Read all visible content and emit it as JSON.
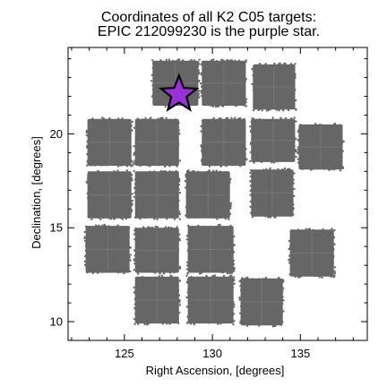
{
  "chart_data": {
    "type": "scatter",
    "title": [
      "Coordinates of all K2 C05 targets:",
      "EPIC 212099230 is the purple star."
    ],
    "xlabel": "Right Ascension, [degrees]",
    "ylabel": "Declination, [degrees]",
    "xlim": [
      121.8,
      138.8
    ],
    "ylim": [
      9.0,
      24.6
    ],
    "xticks": [
      125,
      130,
      135
    ],
    "yticks": [
      10,
      15,
      20
    ],
    "xtick_labels": [
      "125",
      "130",
      "135"
    ],
    "ytick_labels": [
      "10",
      "15",
      "20"
    ],
    "grid": false,
    "colors": {
      "targets": "#666666",
      "highlight": "#9b30d9",
      "outline": "#000000"
    },
    "series": [
      {
        "kind": "target-fields",
        "fields": [
          {
            "ra": [
              126.6,
              129.2
            ],
            "dec": [
              21.5,
              23.9
            ]
          },
          {
            "ra": [
              129.4,
              131.9
            ],
            "dec": [
              21.5,
              23.9
            ]
          },
          {
            "ra": [
              132.3,
              134.7
            ],
            "dec": [
              21.3,
              23.7
            ]
          },
          {
            "ra": [
              122.9,
              125.4
            ],
            "dec": [
              18.3,
              20.8
            ]
          },
          {
            "ra": [
              125.6,
              128.1
            ],
            "dec": [
              18.3,
              20.8
            ]
          },
          {
            "ra": [
              129.4,
              131.9
            ],
            "dec": [
              18.3,
              20.8
            ]
          },
          {
            "ra": [
              132.2,
              134.7
            ],
            "dec": [
              18.5,
              20.8
            ]
          },
          {
            "ra": [
              134.9,
              137.4
            ],
            "dec": [
              18.1,
              20.5
            ]
          },
          {
            "ra": [
              122.9,
              125.4
            ],
            "dec": [
              15.5,
              18.0
            ]
          },
          {
            "ra": [
              125.6,
              128.1
            ],
            "dec": [
              15.5,
              18.0
            ]
          },
          {
            "ra": [
              128.5,
              131.0
            ],
            "dec": [
              15.5,
              18.0
            ]
          },
          {
            "ra": [
              132.2,
              134.6
            ],
            "dec": [
              15.6,
              18.1
            ]
          },
          {
            "ra": [
              122.8,
              125.3
            ],
            "dec": [
              12.6,
              15.1
            ]
          },
          {
            "ra": [
              125.6,
              128.1
            ],
            "dec": [
              12.6,
              15.0
            ]
          },
          {
            "ra": [
              128.6,
              131.2
            ],
            "dec": [
              12.6,
              15.1
            ]
          },
          {
            "ra": [
              134.4,
              136.9
            ],
            "dec": [
              12.4,
              14.9
            ]
          },
          {
            "ra": [
              125.6,
              128.1
            ],
            "dec": [
              9.9,
              12.4
            ]
          },
          {
            "ra": [
              128.6,
              131.2
            ],
            "dec": [
              9.9,
              12.4
            ]
          },
          {
            "ra": [
              131.6,
              134.0
            ],
            "dec": [
              9.8,
              12.3
            ]
          }
        ]
      },
      {
        "kind": "highlight",
        "marker": "star",
        "points": [
          {
            "ra": 128.1,
            "dec": 22.1
          }
        ]
      }
    ]
  }
}
